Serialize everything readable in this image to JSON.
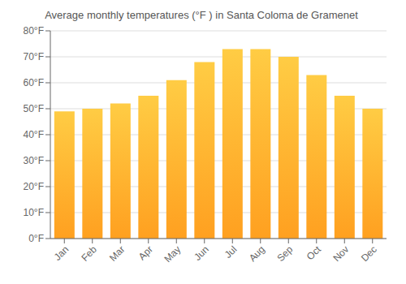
{
  "chart_data": {
    "type": "bar",
    "title": "Average monthly temperatures (°F ) in Santa Coloma de Gramenet",
    "categories": [
      "Jan",
      "Feb",
      "Mar",
      "Apr",
      "May",
      "Jun",
      "Jul",
      "Aug",
      "Sep",
      "Oct",
      "Nov",
      "Dec"
    ],
    "values": [
      49,
      50,
      52,
      55,
      61,
      68,
      73,
      73,
      70,
      63,
      55,
      50
    ],
    "color": "#FFA020",
    "ylim": [
      0,
      80
    ],
    "yticks": [
      {
        "value": 0,
        "label": "0°F"
      },
      {
        "value": 10,
        "label": "10°F"
      },
      {
        "value": 20,
        "label": "20°F"
      },
      {
        "value": 30,
        "label": "30°F"
      },
      {
        "value": 40,
        "label": "40°F"
      },
      {
        "value": 50,
        "label": "50°F"
      },
      {
        "value": 60,
        "label": "60°F"
      },
      {
        "value": 70,
        "label": "70°F"
      },
      {
        "value": 80,
        "label": "80°F"
      }
    ],
    "grid": true
  }
}
